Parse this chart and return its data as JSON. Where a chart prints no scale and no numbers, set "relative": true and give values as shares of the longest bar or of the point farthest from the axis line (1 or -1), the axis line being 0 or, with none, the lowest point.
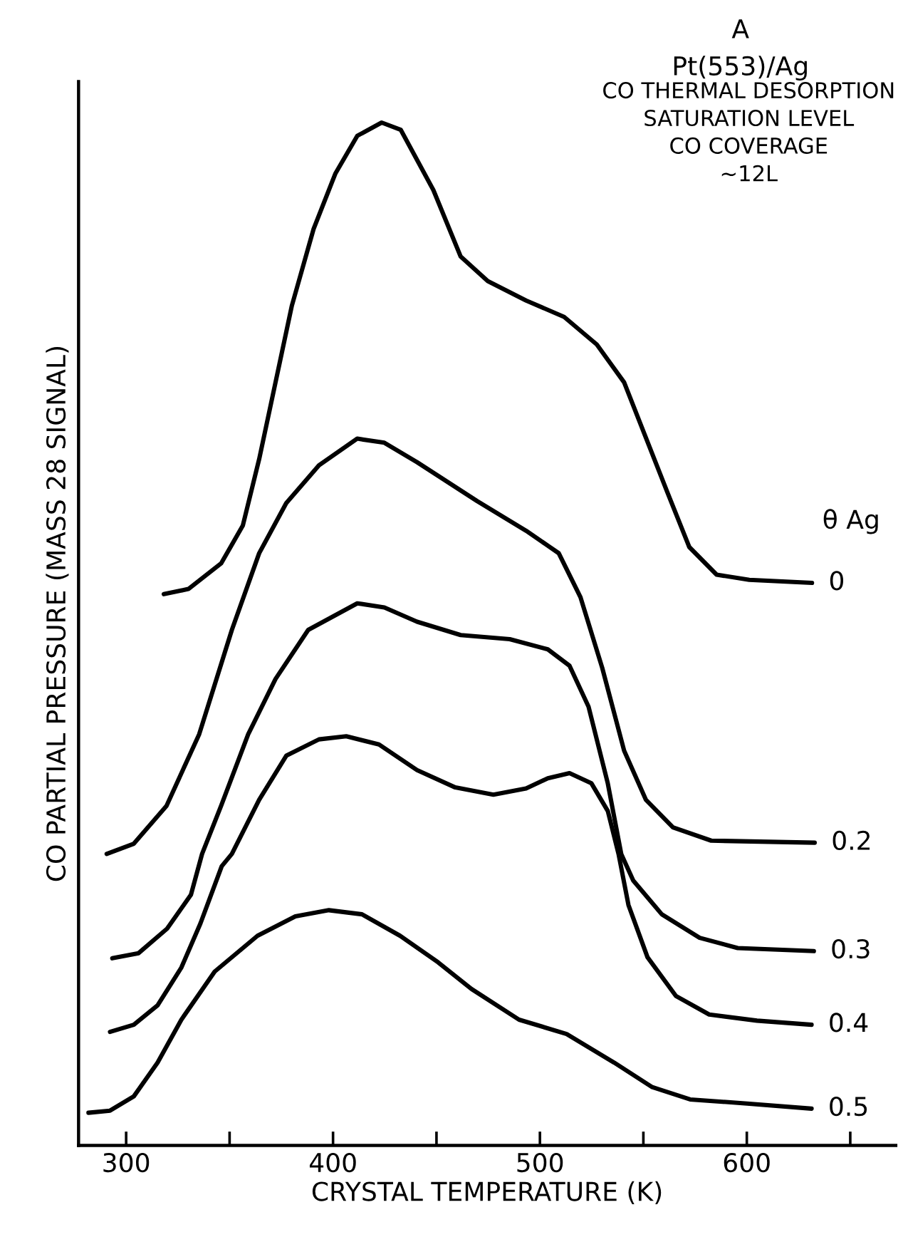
{
  "chart_data": {
    "type": "line",
    "title": "A",
    "subtitle": "Pt(553)/Ag",
    "xlabel": "CRYSTAL TEMPERATURE (K)",
    "ylabel": "CO PARTIAL PRESSURE (MASS 28 SIGNAL)",
    "legend_title": "θ Ag",
    "annotations": [
      "CO THERMAL DESORPTION\nSATURATION LEVEL\nCO COVERAGE\n~12L"
    ],
    "relative": true,
    "grid": false,
    "legend": false,
    "marker": "none",
    "line_style": "solid",
    "xlim": [
      277,
      672
    ],
    "xticks": [
      300,
      {
        "value": 350,
        "label": null
      },
      400,
      {
        "value": 450,
        "label": null
      },
      500,
      {
        "value": 550,
        "label": null
      },
      600,
      {
        "value": 650,
        "label": null
      }
    ],
    "series": [
      {
        "name": "0",
        "color": "#000000",
        "x": [
          318.2,
          330.1,
          345.9,
          356.4,
          364.3,
          372.2,
          380.1,
          390.6,
          401.1,
          411.7,
          423.5,
          432.7,
          448.5,
          461.7,
          474.8,
          493.3,
          511.7,
          527.5,
          540.7,
          551.2,
          561.7,
          572.2,
          585.4,
          601.2,
          631.5
        ],
        "values": [
          0.539,
          0.544,
          0.569,
          0.606,
          0.671,
          0.746,
          0.821,
          0.896,
          0.95,
          0.987,
          1.0,
          0.993,
          0.934,
          0.869,
          0.845,
          0.826,
          0.81,
          0.783,
          0.746,
          0.692,
          0.638,
          0.585,
          0.558,
          0.553,
          0.55
        ]
      },
      {
        "name": "0.2",
        "color": "#000000",
        "x": [
          290.6,
          303.7,
          319.5,
          335.3,
          351.1,
          364.3,
          377.4,
          393.2,
          411.7,
          424.8,
          440.6,
          469.6,
          493.3,
          509.1,
          519.6,
          530.1,
          540.7,
          551.2,
          564.3,
          582.8,
          632.8
        ],
        "values": [
          0.285,
          0.295,
          0.332,
          0.402,
          0.504,
          0.579,
          0.628,
          0.665,
          0.691,
          0.687,
          0.668,
          0.63,
          0.601,
          0.579,
          0.536,
          0.467,
          0.386,
          0.338,
          0.311,
          0.298,
          0.296
        ]
      },
      {
        "name": "0.3",
        "color": "#000000",
        "x": [
          293.3,
          306.0,
          319.8,
          331.3,
          336.7,
          345.9,
          359.0,
          372.2,
          388.0,
          411.7,
          424.8,
          440.6,
          461.7,
          485.4,
          503.8,
          514.3,
          523.5,
          532.8,
          539.3,
          545.1,
          558.9,
          577.2,
          595.6,
          632.4
        ],
        "values": [
          0.183,
          0.188,
          0.212,
          0.245,
          0.285,
          0.332,
          0.402,
          0.456,
          0.504,
          0.53,
          0.526,
          0.512,
          0.499,
          0.495,
          0.485,
          0.469,
          0.429,
          0.354,
          0.285,
          0.259,
          0.226,
          0.203,
          0.193,
          0.19
        ]
      },
      {
        "name": "0.4",
        "color": "#000000",
        "x": [
          292.2,
          303.7,
          315.2,
          326.7,
          335.9,
          346.2,
          351.1,
          364.3,
          377.4,
          393.2,
          406.4,
          422.2,
          440.6,
          459.1,
          477.5,
          493.3,
          503.8,
          514.3,
          524.9,
          532.8,
          538.0,
          542.8,
          552.0,
          565.8,
          581.8,
          604.9,
          631.3
        ],
        "values": [
          0.111,
          0.118,
          0.137,
          0.174,
          0.217,
          0.273,
          0.285,
          0.338,
          0.381,
          0.397,
          0.4,
          0.392,
          0.367,
          0.35,
          0.343,
          0.349,
          0.359,
          0.364,
          0.354,
          0.327,
          0.285,
          0.235,
          0.184,
          0.146,
          0.128,
          0.122,
          0.118
        ]
      },
      {
        "name": "0.5",
        "color": "#000000",
        "x": [
          281.8,
          292.2,
          303.7,
          315.2,
          326.7,
          342.8,
          363.5,
          381.8,
          398.0,
          414.0,
          432.4,
          450.8,
          466.9,
          489.9,
          512.9,
          535.9,
          554.3,
          572.6,
          600.2,
          631.3
        ],
        "values": [
          0.032,
          0.034,
          0.048,
          0.081,
          0.123,
          0.17,
          0.205,
          0.224,
          0.23,
          0.226,
          0.205,
          0.179,
          0.153,
          0.123,
          0.109,
          0.081,
          0.057,
          0.045,
          0.041,
          0.036
        ]
      }
    ]
  }
}
